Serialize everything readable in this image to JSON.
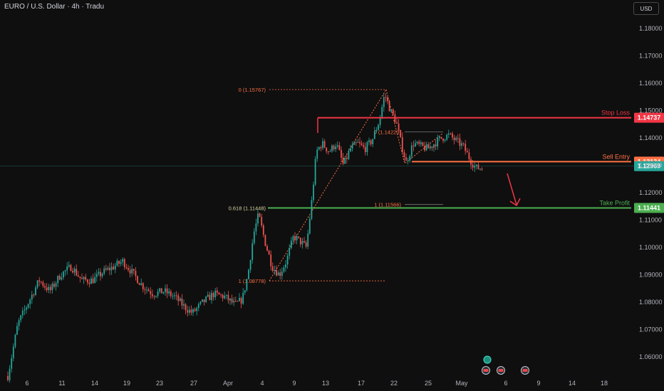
{
  "header": {
    "title": "EURO / U.S. Dollar · 4h · Tradu",
    "currency": "USD"
  },
  "colors": {
    "background": "#0f0f0f",
    "up": "#26a69a",
    "down": "#ef5350",
    "stop": "#f23645",
    "entry": "#ff7043",
    "profit": "#4caf50",
    "fib": "#ff7043"
  },
  "chart_data": {
    "type": "candlestick",
    "title": "EURO / U.S. Dollar · 4h · Tradu",
    "y_ticks": [
      "1.18000",
      "1.17000",
      "1.16000",
      "1.15000",
      "1.14000",
      "1.13000",
      "1.12000",
      "1.11000",
      "1.10000",
      "1.09000",
      "1.08000",
      "1.07000",
      "1.06000"
    ],
    "x_ticks": [
      "6",
      "11",
      "14",
      "19",
      "23",
      "27",
      "Apr",
      "4",
      "9",
      "13",
      "17",
      "22",
      "25",
      "May",
      "6",
      "9",
      "14",
      "18"
    ],
    "ylim": [
      1.0535,
      1.1855
    ],
    "current_price": "1.12969",
    "levels": [
      {
        "label": "Stop Loss",
        "price_label": "1.14737",
        "price": 1.14737,
        "color": "#f23645"
      },
      {
        "label": "Sell Entry",
        "price_label": "1.13134",
        "price": 1.13134,
        "color": "#ff7043"
      },
      {
        "label": "Take Profit",
        "price_label": "1.11441",
        "price": 1.11441,
        "color": "#4caf50"
      }
    ],
    "fib_labels": [
      "0 (1.15767)",
      "0.618 (1.11448)",
      "1 (1.08778)",
      "0 (1.14220)",
      "1 (1.11566)"
    ],
    "anchors": [
      {
        "x": 11,
        "price": 1.053
      },
      {
        "x": 25,
        "price": 1.072
      },
      {
        "x": 40,
        "price": 1.08
      },
      {
        "x": 55,
        "price": 1.088
      },
      {
        "x": 70,
        "price": 1.084
      },
      {
        "x": 85,
        "price": 1.09
      },
      {
        "x": 100,
        "price": 1.093
      },
      {
        "x": 115,
        "price": 1.088
      },
      {
        "x": 130,
        "price": 1.088
      },
      {
        "x": 145,
        "price": 1.091
      },
      {
        "x": 160,
        "price": 1.093
      },
      {
        "x": 172,
        "price": 1.095
      },
      {
        "x": 185,
        "price": 1.091
      },
      {
        "x": 200,
        "price": 1.086
      },
      {
        "x": 215,
        "price": 1.083
      },
      {
        "x": 230,
        "price": 1.084
      },
      {
        "x": 245,
        "price": 1.082
      },
      {
        "x": 260,
        "price": 1.078
      },
      {
        "x": 270,
        "price": 1.076
      },
      {
        "x": 285,
        "price": 1.08
      },
      {
        "x": 300,
        "price": 1.083
      },
      {
        "x": 315,
        "price": 1.082
      },
      {
        "x": 330,
        "price": 1.079
      },
      {
        "x": 340,
        "price": 1.081
      },
      {
        "x": 348,
        "price": 1.09
      },
      {
        "x": 356,
        "price": 1.105
      },
      {
        "x": 363,
        "price": 1.112
      },
      {
        "x": 372,
        "price": 1.102
      },
      {
        "x": 382,
        "price": 1.093
      },
      {
        "x": 392,
        "price": 1.09
      },
      {
        "x": 402,
        "price": 1.095
      },
      {
        "x": 412,
        "price": 1.104
      },
      {
        "x": 422,
        "price": 1.102
      },
      {
        "x": 430,
        "price": 1.1
      },
      {
        "x": 438,
        "price": 1.118
      },
      {
        "x": 444,
        "price": 1.135
      },
      {
        "x": 452,
        "price": 1.138
      },
      {
        "x": 462,
        "price": 1.135
      },
      {
        "x": 472,
        "price": 1.138
      },
      {
        "x": 482,
        "price": 1.13
      },
      {
        "x": 492,
        "price": 1.136
      },
      {
        "x": 502,
        "price": 1.138
      },
      {
        "x": 512,
        "price": 1.136
      },
      {
        "x": 522,
        "price": 1.139
      },
      {
        "x": 532,
        "price": 1.146
      },
      {
        "x": 540,
        "price": 1.156
      },
      {
        "x": 548,
        "price": 1.15
      },
      {
        "x": 556,
        "price": 1.146
      },
      {
        "x": 563,
        "price": 1.138
      },
      {
        "x": 570,
        "price": 1.131
      },
      {
        "x": 580,
        "price": 1.138
      },
      {
        "x": 590,
        "price": 1.137
      },
      {
        "x": 600,
        "price": 1.136
      },
      {
        "x": 610,
        "price": 1.138
      },
      {
        "x": 620,
        "price": 1.14
      },
      {
        "x": 630,
        "price": 1.141
      },
      {
        "x": 640,
        "price": 1.139
      },
      {
        "x": 650,
        "price": 1.137
      },
      {
        "x": 660,
        "price": 1.132
      },
      {
        "x": 668,
        "price": 1.129
      },
      {
        "x": 678,
        "price": 1.129
      }
    ]
  }
}
